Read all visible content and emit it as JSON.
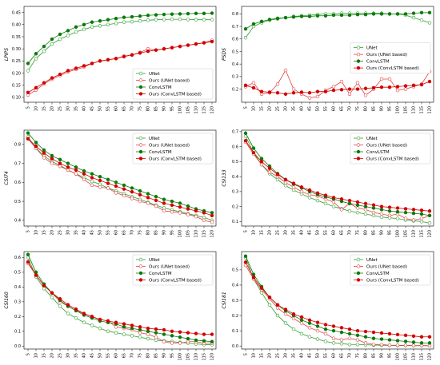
{
  "colors": {
    "unet": "#2e9e2e",
    "ours_unet": "#e04040",
    "convlstm": "#0a7a0a",
    "ours_convlstm": "#d40000"
  },
  "chart_data": [
    {
      "type": "line",
      "ylabel": "LPIPS",
      "ylim": [
        0.08,
        0.475
      ],
      "yticks": [
        "0.10",
        "0.15",
        "0.20",
        "0.25",
        "0.30",
        "0.35",
        "0.40",
        "0.45"
      ],
      "ytick_values": [
        0.1,
        0.15,
        0.2,
        0.25,
        0.3,
        0.35,
        0.4,
        0.45
      ],
      "legend": "lower-right",
      "categories": [
        "5",
        "10",
        "15",
        "20",
        "25",
        "30",
        "35",
        "40",
        "45",
        "50",
        "55",
        "60",
        "65",
        "70",
        "75",
        "80",
        "85",
        "90",
        "95",
        "100",
        "105",
        "110",
        "115",
        "120"
      ],
      "series": [
        {
          "name": "UNet",
          "key": "unet",
          "values": [
            0.21,
            0.26,
            0.29,
            0.32,
            0.34,
            0.355,
            0.37,
            0.38,
            0.39,
            0.395,
            0.4,
            0.405,
            0.41,
            0.412,
            0.415,
            0.418,
            0.42,
            0.421,
            0.422,
            0.422,
            0.421,
            0.42,
            0.42,
            0.42
          ]
        },
        {
          "name": "Ours (UNet based)",
          "key": "ours_unet",
          "values": [
            0.11,
            0.13,
            0.155,
            0.175,
            0.19,
            0.205,
            0.215,
            0.225,
            0.24,
            0.25,
            0.255,
            0.26,
            0.27,
            0.275,
            0.285,
            0.3,
            0.295,
            0.3,
            0.305,
            0.31,
            0.315,
            0.32,
            0.325,
            0.335
          ]
        },
        {
          "name": "ConvLSTM",
          "key": "convlstm",
          "values": [
            0.24,
            0.28,
            0.31,
            0.34,
            0.36,
            0.375,
            0.39,
            0.4,
            0.41,
            0.415,
            0.42,
            0.425,
            0.43,
            0.432,
            0.435,
            0.438,
            0.44,
            0.442,
            0.443,
            0.444,
            0.445,
            0.446,
            0.446,
            0.447
          ]
        },
        {
          "name": "Ours (ConvLSTM based)",
          "key": "ours_convlstm",
          "values": [
            0.12,
            0.14,
            0.16,
            0.18,
            0.195,
            0.21,
            0.22,
            0.23,
            0.24,
            0.25,
            0.255,
            0.26,
            0.268,
            0.275,
            0.283,
            0.29,
            0.295,
            0.3,
            0.305,
            0.31,
            0.315,
            0.32,
            0.325,
            0.33
          ]
        }
      ]
    },
    {
      "type": "line",
      "ylabel": "PSDS",
      "ylim": [
        0.095,
        0.86
      ],
      "yticks": [
        "0.2",
        "0.3",
        "0.4",
        "0.5",
        "0.6",
        "0.7",
        "0.8"
      ],
      "ytick_values": [
        0.2,
        0.3,
        0.4,
        0.5,
        0.6,
        0.7,
        0.8
      ],
      "legend": "center-right",
      "categories": [
        "5",
        "10",
        "15",
        "20",
        "25",
        "30",
        "35",
        "40",
        "45",
        "50",
        "55",
        "60",
        "65",
        "70",
        "75",
        "80",
        "85",
        "90",
        "95",
        "100",
        "105",
        "110",
        "115",
        "120"
      ],
      "series": [
        {
          "name": "UNet",
          "key": "unet",
          "values": [
            0.61,
            0.7,
            0.73,
            0.75,
            0.76,
            0.77,
            0.78,
            0.785,
            0.79,
            0.795,
            0.8,
            0.8,
            0.805,
            0.805,
            0.805,
            0.805,
            0.805,
            0.805,
            0.8,
            0.8,
            0.79,
            0.77,
            0.75,
            0.73
          ]
        },
        {
          "name": "Ours (UNet based)",
          "key": "ours_unet",
          "values": [
            0.22,
            0.25,
            0.16,
            0.17,
            0.24,
            0.35,
            0.2,
            0.16,
            0.13,
            0.14,
            0.19,
            0.22,
            0.26,
            0.16,
            0.25,
            0.15,
            0.2,
            0.28,
            0.28,
            0.19,
            0.2,
            0.22,
            0.24,
            0.34
          ]
        },
        {
          "name": "ConvLSTM",
          "key": "convlstm",
          "values": [
            0.68,
            0.72,
            0.74,
            0.755,
            0.765,
            0.77,
            0.775,
            0.78,
            0.78,
            0.785,
            0.785,
            0.79,
            0.79,
            0.79,
            0.795,
            0.795,
            0.8,
            0.8,
            0.8,
            0.8,
            0.8,
            0.805,
            0.81,
            0.81
          ]
        },
        {
          "name": "Ours (ConvLSTM based)",
          "key": "ours_convlstm",
          "values": [
            0.23,
            0.21,
            0.18,
            0.175,
            0.17,
            0.16,
            0.17,
            0.175,
            0.17,
            0.18,
            0.18,
            0.19,
            0.195,
            0.2,
            0.2,
            0.205,
            0.21,
            0.215,
            0.215,
            0.22,
            0.225,
            0.23,
            0.235,
            0.26
          ]
        }
      ]
    },
    {
      "type": "line",
      "ylabel": "CSI74",
      "ylim": [
        0.37,
        0.875
      ],
      "yticks": [
        "0.4",
        "0.5",
        "0.6",
        "0.7",
        "0.8"
      ],
      "ytick_values": [
        0.4,
        0.5,
        0.6,
        0.7,
        0.8
      ],
      "legend": "top-right",
      "categories": [
        "5",
        "10",
        "15",
        "20",
        "25",
        "30",
        "35",
        "40",
        "45",
        "50",
        "55",
        "60",
        "65",
        "70",
        "75",
        "80",
        "85",
        "90",
        "95",
        "100",
        "105",
        "110",
        "115",
        "120"
      ],
      "series": [
        {
          "name": "UNet",
          "key": "unet",
          "values": [
            0.84,
            0.78,
            0.74,
            0.71,
            0.69,
            0.665,
            0.645,
            0.625,
            0.605,
            0.59,
            0.57,
            0.555,
            0.54,
            0.525,
            0.51,
            0.495,
            0.48,
            0.465,
            0.455,
            0.445,
            0.435,
            0.425,
            0.415,
            0.4
          ]
        },
        {
          "name": "Ours (UNet based)",
          "key": "ours_unet",
          "values": [
            0.83,
            0.78,
            0.73,
            0.7,
            0.685,
            0.665,
            0.645,
            0.615,
            0.585,
            0.575,
            0.57,
            0.545,
            0.53,
            0.515,
            0.5,
            0.49,
            0.475,
            0.45,
            0.445,
            0.44,
            0.43,
            0.42,
            0.4,
            0.39
          ]
        },
        {
          "name": "ConvLSTM",
          "key": "convlstm",
          "values": [
            0.86,
            0.81,
            0.77,
            0.74,
            0.72,
            0.7,
            0.68,
            0.66,
            0.645,
            0.63,
            0.615,
            0.6,
            0.585,
            0.57,
            0.555,
            0.54,
            0.525,
            0.51,
            0.5,
            0.49,
            0.475,
            0.46,
            0.45,
            0.44
          ]
        },
        {
          "name": "Ours (ConvLSTM based)",
          "key": "ours_convlstm",
          "values": [
            0.83,
            0.79,
            0.755,
            0.725,
            0.7,
            0.68,
            0.665,
            0.645,
            0.625,
            0.61,
            0.595,
            0.58,
            0.565,
            0.55,
            0.535,
            0.52,
            0.505,
            0.49,
            0.48,
            0.47,
            0.46,
            0.45,
            0.44,
            0.425
          ]
        }
      ]
    },
    {
      "type": "line",
      "ylabel": "CSI133",
      "ylim": [
        0.07,
        0.71
      ],
      "yticks": [
        "0.1",
        "0.2",
        "0.3",
        "0.4",
        "0.5",
        "0.6",
        "0.7"
      ],
      "ytick_values": [
        0.1,
        0.2,
        0.3,
        0.4,
        0.5,
        0.6,
        0.7
      ],
      "legend": "top-right",
      "categories": [
        "5",
        "10",
        "15",
        "20",
        "25",
        "30",
        "35",
        "40",
        "45",
        "50",
        "55",
        "60",
        "65",
        "70",
        "75",
        "80",
        "85",
        "90",
        "95",
        "100",
        "105",
        "110",
        "115",
        "120"
      ],
      "series": [
        {
          "name": "UNet",
          "key": "unet",
          "values": [
            0.67,
            0.56,
            0.48,
            0.42,
            0.38,
            0.34,
            0.31,
            0.285,
            0.26,
            0.24,
            0.22,
            0.2,
            0.185,
            0.17,
            0.16,
            0.15,
            0.14,
            0.13,
            0.125,
            0.12,
            0.11,
            0.105,
            0.1,
            0.09
          ]
        },
        {
          "name": "Ours (UNet based)",
          "key": "ours_unet",
          "values": [
            0.63,
            0.55,
            0.48,
            0.43,
            0.4,
            0.36,
            0.33,
            0.3,
            0.28,
            0.27,
            0.25,
            0.23,
            0.18,
            0.22,
            0.19,
            0.18,
            0.16,
            0.15,
            0.14,
            0.15,
            0.12,
            0.11,
            0.12,
            0.14
          ]
        },
        {
          "name": "ConvLSTM",
          "key": "convlstm",
          "values": [
            0.69,
            0.59,
            0.52,
            0.47,
            0.42,
            0.38,
            0.35,
            0.325,
            0.3,
            0.28,
            0.265,
            0.25,
            0.235,
            0.22,
            0.21,
            0.2,
            0.19,
            0.18,
            0.17,
            0.165,
            0.16,
            0.155,
            0.15,
            0.14
          ]
        },
        {
          "name": "Ours (ConvLSTM based)",
          "key": "ours_convlstm",
          "values": [
            0.64,
            0.56,
            0.5,
            0.455,
            0.415,
            0.38,
            0.355,
            0.33,
            0.31,
            0.29,
            0.275,
            0.26,
            0.25,
            0.24,
            0.23,
            0.22,
            0.21,
            0.2,
            0.195,
            0.19,
            0.185,
            0.18,
            0.175,
            0.17
          ]
        }
      ]
    },
    {
      "type": "line",
      "ylabel": "CSI160",
      "ylim": [
        -0.02,
        0.64
      ],
      "yticks": [
        "0.0",
        "0.1",
        "0.2",
        "0.3",
        "0.4",
        "0.5",
        "0.6"
      ],
      "ytick_values": [
        0.0,
        0.1,
        0.2,
        0.3,
        0.4,
        0.5,
        0.6
      ],
      "legend": "top-right",
      "categories": [
        "5",
        "10",
        "15",
        "20",
        "25",
        "30",
        "35",
        "40",
        "45",
        "50",
        "55",
        "60",
        "65",
        "70",
        "75",
        "80",
        "85",
        "90",
        "95",
        "100",
        "105",
        "110",
        "115",
        "120"
      ],
      "series": [
        {
          "name": "UNet",
          "key": "unet",
          "values": [
            0.6,
            0.47,
            0.39,
            0.33,
            0.27,
            0.22,
            0.19,
            0.16,
            0.14,
            0.12,
            0.1,
            0.09,
            0.08,
            0.07,
            0.06,
            0.05,
            0.04,
            0.035,
            0.03,
            0.025,
            0.02,
            0.015,
            0.01,
            0.01
          ]
        },
        {
          "name": "Ours (UNet based)",
          "key": "ours_unet",
          "values": [
            0.56,
            0.48,
            0.41,
            0.36,
            0.3,
            0.27,
            0.24,
            0.22,
            0.2,
            0.18,
            0.17,
            0.13,
            0.12,
            0.11,
            0.09,
            0.08,
            0.06,
            0.03,
            0.02,
            0.02,
            0.03,
            0.03,
            0.02,
            0.02
          ]
        },
        {
          "name": "ConvLSTM",
          "key": "convlstm",
          "values": [
            0.62,
            0.5,
            0.42,
            0.36,
            0.31,
            0.27,
            0.24,
            0.21,
            0.19,
            0.17,
            0.16,
            0.15,
            0.13,
            0.12,
            0.11,
            0.1,
            0.09,
            0.08,
            0.07,
            0.06,
            0.05,
            0.04,
            0.035,
            0.03
          ]
        },
        {
          "name": "Ours (ConvLSTM based)",
          "key": "ours_convlstm",
          "values": [
            0.57,
            0.48,
            0.41,
            0.36,
            0.32,
            0.28,
            0.25,
            0.22,
            0.2,
            0.18,
            0.17,
            0.16,
            0.15,
            0.14,
            0.13,
            0.12,
            0.115,
            0.11,
            0.1,
            0.095,
            0.09,
            0.085,
            0.08,
            0.08
          ]
        }
      ]
    },
    {
      "type": "line",
      "ylabel": "CSI181",
      "ylim": [
        -0.02,
        0.62
      ],
      "yticks": [
        "0.0",
        "0.1",
        "0.2",
        "0.3",
        "0.4",
        "0.5"
      ],
      "ytick_values": [
        0.0,
        0.1,
        0.2,
        0.3,
        0.4,
        0.5
      ],
      "legend": "top-right",
      "categories": [
        "5",
        "10",
        "15",
        "20",
        "25",
        "30",
        "35",
        "40",
        "45",
        "50",
        "55",
        "60",
        "65",
        "70",
        "75",
        "80",
        "85",
        "90",
        "95",
        "100",
        "105",
        "110",
        "115",
        "120"
      ],
      "series": [
        {
          "name": "UNet",
          "key": "unet",
          "values": [
            0.58,
            0.44,
            0.35,
            0.27,
            0.2,
            0.15,
            0.11,
            0.08,
            0.06,
            0.045,
            0.03,
            0.02,
            0.015,
            0.01,
            0.01,
            0.008,
            0.006,
            0.005,
            0.004,
            0.003,
            0.003,
            0.002,
            0.002,
            0.002
          ]
        },
        {
          "name": "Ours (UNet based)",
          "key": "ours_unet",
          "values": [
            0.53,
            0.44,
            0.37,
            0.31,
            0.25,
            0.21,
            0.18,
            0.15,
            0.12,
            0.1,
            0.08,
            0.05,
            0.04,
            0.05,
            0.04,
            0.02,
            0.01,
            0.01,
            0.005,
            0.005,
            0.004,
            0.003,
            0.003,
            0.002
          ]
        },
        {
          "name": "ConvLSTM",
          "key": "convlstm",
          "values": [
            0.59,
            0.47,
            0.39,
            0.32,
            0.27,
            0.23,
            0.2,
            0.17,
            0.15,
            0.13,
            0.11,
            0.1,
            0.09,
            0.08,
            0.07,
            0.06,
            0.05,
            0.045,
            0.04,
            0.035,
            0.03,
            0.025,
            0.02,
            0.02
          ]
        },
        {
          "name": "Ours (ConvLSTM based)",
          "key": "ours_convlstm",
          "values": [
            0.55,
            0.45,
            0.38,
            0.32,
            0.27,
            0.24,
            0.21,
            0.19,
            0.17,
            0.155,
            0.14,
            0.13,
            0.12,
            0.11,
            0.1,
            0.095,
            0.09,
            0.085,
            0.08,
            0.075,
            0.07,
            0.065,
            0.06,
            0.06
          ]
        }
      ]
    }
  ]
}
